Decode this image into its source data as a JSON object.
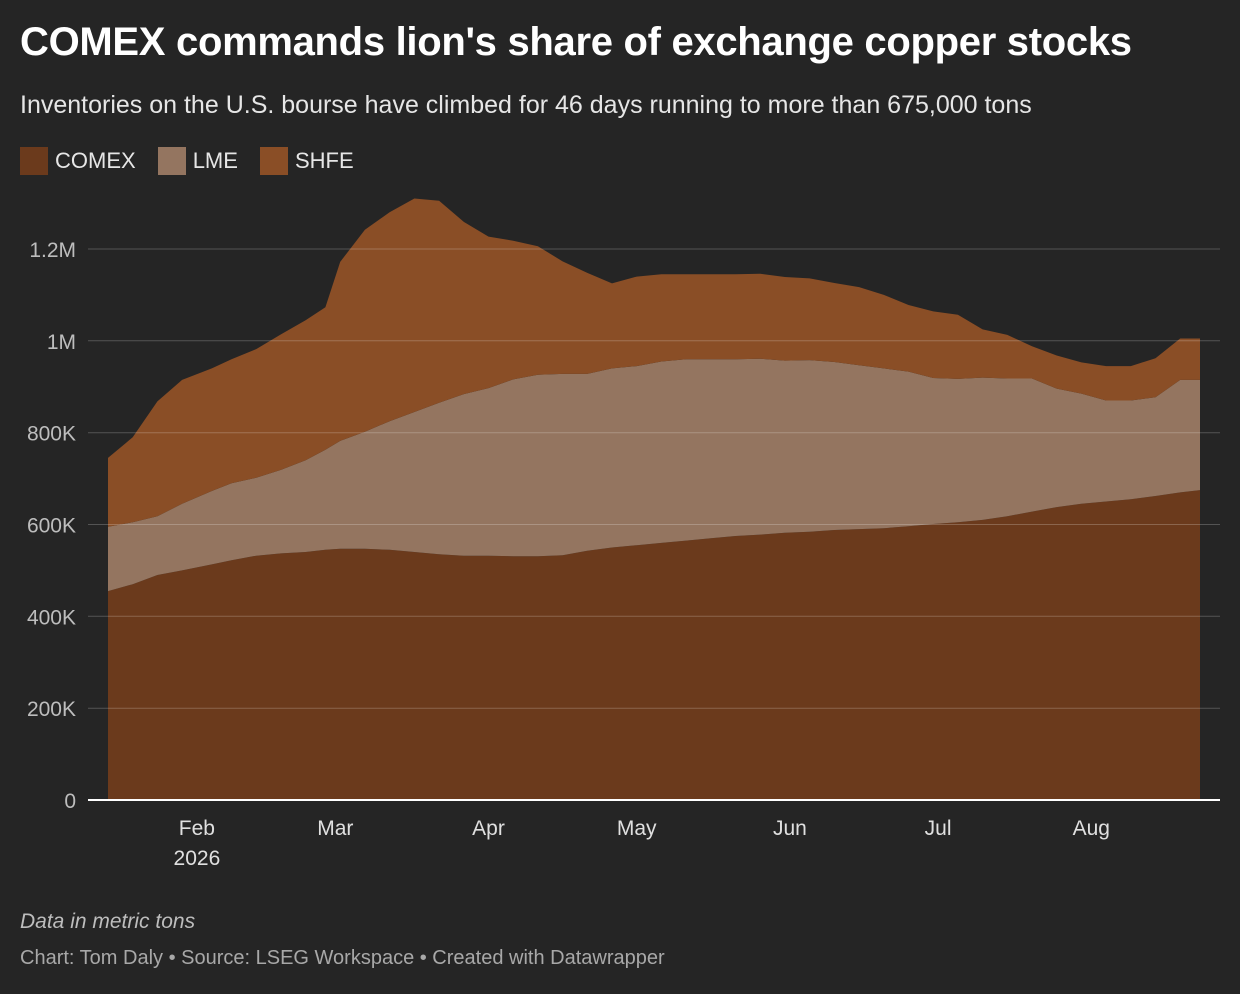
{
  "header": {
    "title": "COMEX commands lion's share of exchange copper stocks",
    "subtitle": "Inventories on the U.S. bourse have climbed for 46 days running to more than 675,000 tons"
  },
  "legend": [
    {
      "label": "COMEX",
      "color": "#6b3a1c"
    },
    {
      "label": "LME",
      "color": "#947560"
    },
    {
      "label": "SHFE",
      "color": "#8a4e26"
    }
  ],
  "chart_data": {
    "type": "area",
    "stacked": true,
    "x_unit": "date",
    "y_unit": "metric tons",
    "ylim": [
      0,
      1300000
    ],
    "y_ticks": [
      0,
      200000,
      400000,
      600000,
      800000,
      1000000,
      1200000
    ],
    "y_tick_labels": [
      "0",
      "200K",
      "400K",
      "600K",
      "800K",
      "1M",
      "1.2M"
    ],
    "x_ticks": [
      {
        "date": "2026-02-01",
        "label": "Feb",
        "sublabel": "2026"
      },
      {
        "date": "2026-03-01",
        "label": "Mar",
        "sublabel": ""
      },
      {
        "date": "2026-04-01",
        "label": "Apr",
        "sublabel": ""
      },
      {
        "date": "2026-05-01",
        "label": "May",
        "sublabel": ""
      },
      {
        "date": "2026-06-01",
        "label": "Jun",
        "sublabel": ""
      },
      {
        "date": "2026-07-01",
        "label": "Jul",
        "sublabel": ""
      },
      {
        "date": "2026-08-01",
        "label": "Aug",
        "sublabel": ""
      }
    ],
    "grid": true,
    "legend_position": "top-left",
    "x": [
      "2026-01-14",
      "2026-01-19",
      "2026-01-24",
      "2026-01-29",
      "2026-02-04",
      "2026-02-08",
      "2026-02-13",
      "2026-02-18",
      "2026-02-23",
      "2026-02-27",
      "2026-03-02",
      "2026-03-07",
      "2026-03-12",
      "2026-03-17",
      "2026-03-22",
      "2026-03-27",
      "2026-04-01",
      "2026-04-06",
      "2026-04-11",
      "2026-04-16",
      "2026-04-21",
      "2026-04-26",
      "2026-05-01",
      "2026-05-06",
      "2026-05-11",
      "2026-05-16",
      "2026-05-21",
      "2026-05-26",
      "2026-05-31",
      "2026-06-05",
      "2026-06-10",
      "2026-06-15",
      "2026-06-20",
      "2026-06-25",
      "2026-06-30",
      "2026-07-05",
      "2026-07-10",
      "2026-07-15",
      "2026-07-20",
      "2026-07-25",
      "2026-07-30",
      "2026-08-04",
      "2026-08-09",
      "2026-08-14",
      "2026-08-19",
      "2026-08-23"
    ],
    "series": [
      {
        "name": "COMEX",
        "color": "#6b3a1c",
        "values": [
          455000,
          470000,
          490000,
          500000,
          513000,
          522000,
          532000,
          537000,
          540000,
          545000,
          547000,
          547000,
          545000,
          540000,
          535000,
          532000,
          532000,
          531000,
          531000,
          533000,
          543000,
          550000,
          555000,
          560000,
          565000,
          570000,
          575000,
          578000,
          582000,
          584000,
          588000,
          590000,
          592000,
          596000,
          601000,
          605000,
          610000,
          618000,
          628000,
          638000,
          645000,
          650000,
          655000,
          662000,
          670000,
          675000
        ]
      },
      {
        "name": "LME",
        "color": "#947560",
        "values": [
          140000,
          135000,
          128000,
          145000,
          160000,
          168000,
          170000,
          182000,
          200000,
          218000,
          235000,
          255000,
          280000,
          305000,
          330000,
          352000,
          365000,
          385000,
          395000,
          395000,
          385000,
          390000,
          390000,
          395000,
          395000,
          390000,
          385000,
          383000,
          375000,
          374000,
          366000,
          357000,
          348000,
          337000,
          318000,
          312000,
          310000,
          300000,
          290000,
          258000,
          240000,
          220000,
          215000,
          215000,
          245000,
          240000
        ]
      },
      {
        "name": "SHFE",
        "color": "#8a4e26",
        "values": [
          150000,
          185000,
          250000,
          270000,
          267000,
          270000,
          280000,
          295000,
          305000,
          310000,
          390000,
          440000,
          455000,
          465000,
          440000,
          375000,
          330000,
          302000,
          280000,
          245000,
          220000,
          185000,
          195000,
          190000,
          185000,
          185000,
          185000,
          185000,
          182000,
          178000,
          172000,
          170000,
          160000,
          145000,
          145000,
          140000,
          105000,
          95000,
          70000,
          72000,
          68000,
          75000,
          75000,
          85000,
          90000,
          90000
        ]
      }
    ]
  },
  "notes": "Data in metric tons",
  "footer": "Chart: Tom Daly • Source: LSEG Workspace • Created with Datawrapper"
}
